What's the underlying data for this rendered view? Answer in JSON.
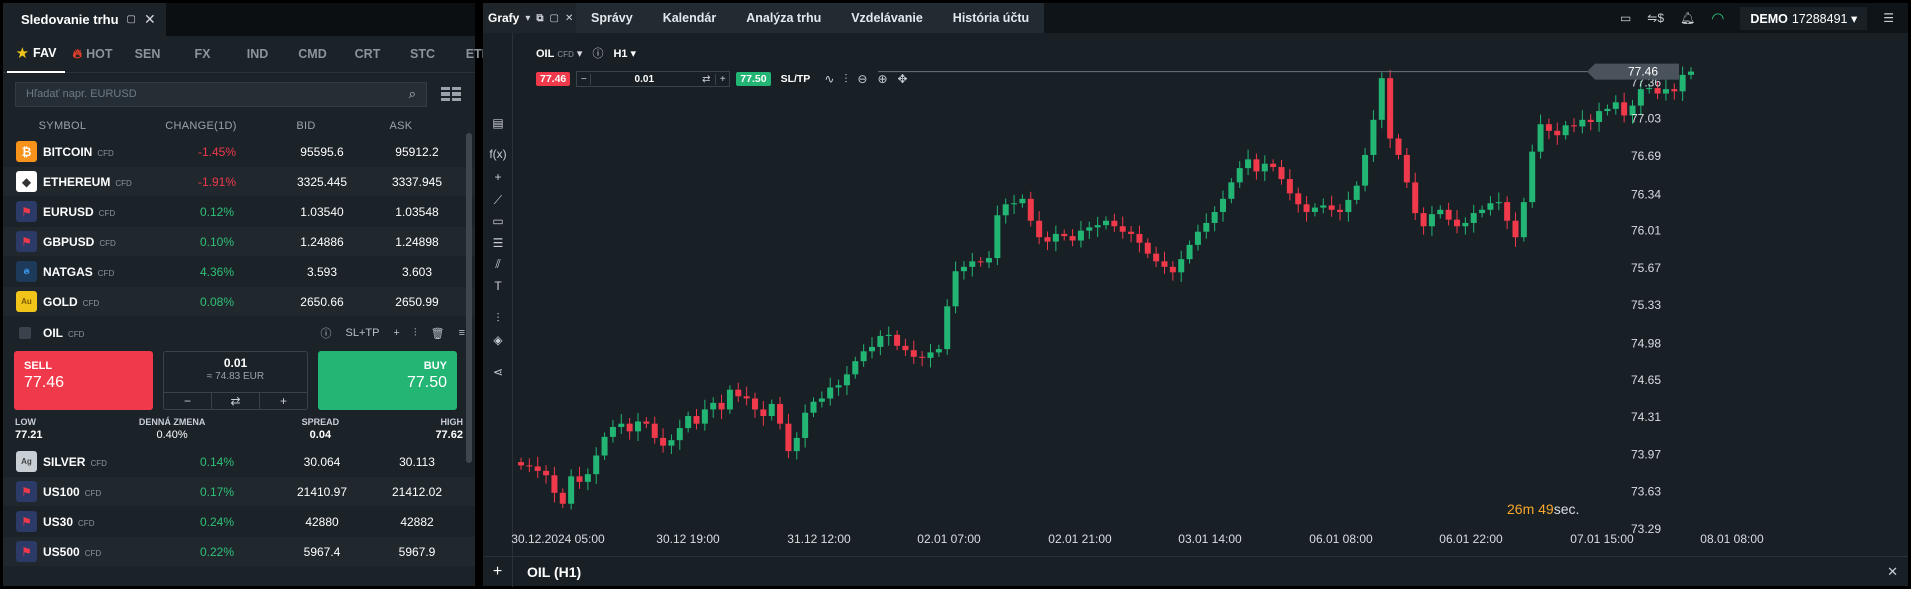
{
  "watchlist": {
    "title": "Sledovanie trhu",
    "tabs": [
      "FAV",
      "HOT",
      "SEN",
      "FX",
      "IND",
      "CMD",
      "CRT",
      "STC",
      "ETF"
    ],
    "search_placeholder": "Hľadať napr. EURUSD",
    "columns": {
      "symbol": "SYMBOL",
      "change": "CHANGE(1D)",
      "bid": "BID",
      "ask": "ASK"
    },
    "rows_top": [
      {
        "symbol": "BITCOIN",
        "type": "CFD",
        "change": "-1.45%",
        "bid": "95595.6",
        "ask": "95912.2",
        "dir": "neg",
        "icon": "bitcoin-icon"
      },
      {
        "symbol": "ETHEREUM",
        "type": "CFD",
        "change": "-1.91%",
        "bid": "3325.445",
        "ask": "3337.945",
        "dir": "neg",
        "icon": "ethereum-icon"
      },
      {
        "symbol": "EURUSD",
        "type": "CFD",
        "change": "0.12%",
        "bid": "1.03540",
        "ask": "1.03548",
        "dir": "pos",
        "icon": "eu-us-flag-icon"
      },
      {
        "symbol": "GBPUSD",
        "type": "CFD",
        "change": "0.10%",
        "bid": "1.24886",
        "ask": "1.24898",
        "dir": "pos",
        "icon": "uk-us-flag-icon"
      },
      {
        "symbol": "NATGAS",
        "type": "CFD",
        "change": "4.36%",
        "bid": "3.593",
        "ask": "3.603",
        "dir": "pos",
        "icon": "flame-icon"
      },
      {
        "symbol": "GOLD",
        "type": "CFD",
        "change": "0.08%",
        "bid": "2650.66",
        "ask": "2650.99",
        "dir": "pos",
        "icon": "gold-icon"
      }
    ],
    "selected": {
      "symbol": "OIL",
      "type": "CFD",
      "sltp": "SL+TP",
      "sell_label": "SELL",
      "sell_price": "77.46",
      "buy_label": "BUY",
      "buy_price": "77.50",
      "volume": "0.01",
      "volume_eur": "≈ 74.83 EUR",
      "low_label": "LOW",
      "low": "77.21",
      "daily_label": "DENNÁ ZMENA",
      "daily": "0.40%",
      "spread_label": "SPREAD",
      "spread": "0.04",
      "high_label": "HIGH",
      "high": "77.62"
    },
    "rows_bottom": [
      {
        "symbol": "SILVER",
        "type": "CFD",
        "change": "0.14%",
        "bid": "30.064",
        "ask": "30.113",
        "dir": "pos",
        "icon": "silver-icon"
      },
      {
        "symbol": "US100",
        "type": "CFD",
        "change": "0.17%",
        "bid": "21410.97",
        "ask": "21412.02",
        "dir": "pos",
        "icon": "us-flag-icon"
      },
      {
        "symbol": "US30",
        "type": "CFD",
        "change": "0.24%",
        "bid": "42880",
        "ask": "42882",
        "dir": "pos",
        "icon": "us-flag-icon"
      },
      {
        "symbol": "US500",
        "type": "CFD",
        "change": "0.22%",
        "bid": "5967.4",
        "ask": "5967.9",
        "dir": "pos",
        "icon": "us-flag-icon"
      }
    ]
  },
  "topbar": {
    "charts_label": "Grafy",
    "tabs": [
      "Správy",
      "Kalendár",
      "Analýza trhu",
      "Vzdelávanie",
      "História účtu"
    ],
    "account_type": "DEMO",
    "account_number": "17288491"
  },
  "chart": {
    "symbol": "OIL",
    "type_tag": "CFD",
    "timeframe": "H1",
    "sell_price": "77.46",
    "volume": "0.01",
    "buy_price": "77.50",
    "sltp_label": "SL/TP",
    "footer_title": "OIL (H1)",
    "countdown_m": "26",
    "countdown_s": "49",
    "countdown_m_unit": "m",
    "countdown_s_unit": "sec.",
    "current_price_tag": "77.46"
  },
  "chart_data": {
    "type": "candlestick",
    "y_ticks": [
      "77.36",
      "77.03",
      "76.69",
      "76.34",
      "76.01",
      "75.67",
      "75.33",
      "74.98",
      "74.65",
      "74.31",
      "73.97",
      "73.63",
      "73.29"
    ],
    "x_ticks": [
      "30.12.2024 05:00",
      "30.12 19:00",
      "31.12 12:00",
      "02.01 07:00",
      "02.01 21:00",
      "03.01 14:00",
      "06.01 08:00",
      "06.01 22:00",
      "07.01 15:00",
      "08.01 08:00"
    ],
    "ylim": [
      73.29,
      77.52
    ],
    "closes": [
      73.87,
      73.86,
      73.82,
      73.78,
      73.62,
      73.52,
      73.77,
      73.72,
      73.79,
      73.96,
      74.13,
      74.22,
      74.25,
      74.18,
      74.27,
      74.25,
      74.12,
      74.05,
      74.1,
      74.21,
      74.32,
      74.25,
      74.38,
      74.44,
      74.38,
      74.56,
      74.5,
      74.48,
      74.38,
      74.32,
      74.43,
      74.25,
      74.0,
      74.12,
      74.35,
      74.45,
      74.48,
      74.58,
      74.6,
      74.7,
      74.82,
      74.91,
      74.95,
      75.05,
      75.06,
      74.96,
      74.92,
      74.86,
      74.85,
      74.9,
      74.93,
      75.32,
      75.64,
      75.68,
      75.73,
      75.72,
      75.76,
      76.15,
      76.25,
      76.26,
      76.3,
      76.1,
      75.95,
      75.91,
      75.98,
      75.96,
      75.92,
      76.01,
      76.04,
      76.06,
      76.1,
      76.05,
      76.0,
      75.98,
      75.9,
      75.8,
      75.73,
      75.68,
      75.63,
      75.75,
      75.88,
      76.0,
      76.08,
      76.18,
      76.3,
      76.45,
      76.58,
      76.66,
      76.55,
      76.62,
      76.59,
      76.48,
      76.35,
      76.25,
      76.18,
      76.22,
      76.24,
      76.2,
      76.18,
      76.29,
      76.42,
      76.7,
      77.02,
      77.4,
      76.85,
      76.7,
      76.45,
      76.17,
      76.05,
      76.16,
      76.2,
      76.11,
      76.05,
      76.08,
      76.17,
      76.2,
      76.26,
      76.27,
      76.1,
      75.95,
      76.27,
      76.73,
      76.98,
      76.92,
      76.88,
      76.97,
      76.96,
      77.02,
      77.0,
      77.1,
      77.12,
      77.18,
      77.06,
      77.15,
      77.3,
      77.31,
      77.26,
      77.3,
      77.28,
      77.43,
      77.46
    ]
  }
}
